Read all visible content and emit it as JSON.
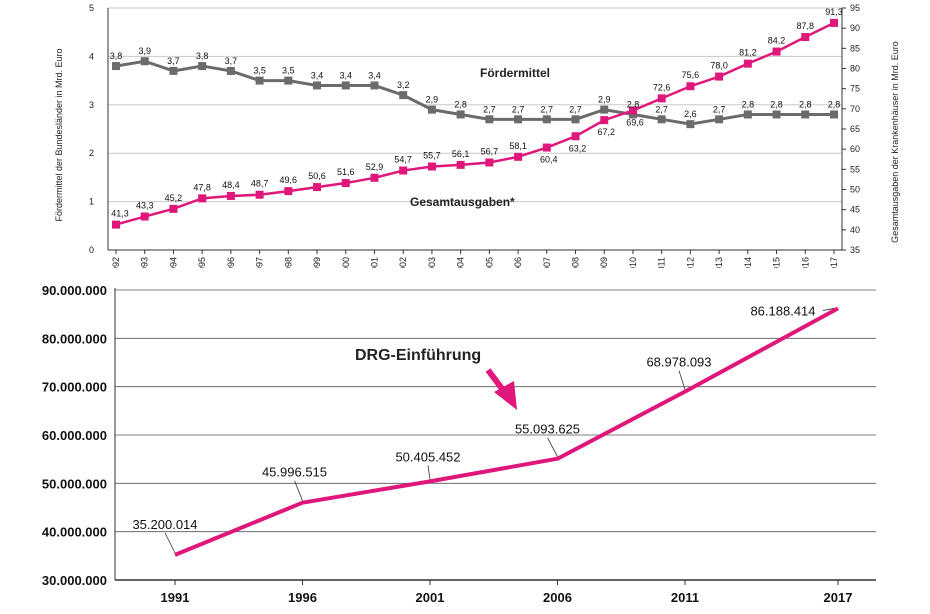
{
  "colors": {
    "magenta": "#e0177a",
    "gray": "#6b6b6b",
    "grid": "#c8c8c8",
    "axis": "#333333"
  },
  "chart_data": [
    {
      "type": "line",
      "x": [
        "1992",
        "1993",
        "1994",
        "1995",
        "1996",
        "1997",
        "1998",
        "1999",
        "2000",
        "2001",
        "2002",
        "2003",
        "2004",
        "2005",
        "2006",
        "2007",
        "2008",
        "2009",
        "2010",
        "2011",
        "2012",
        "2013",
        "2014",
        "2015",
        "2016",
        "2017"
      ],
      "series": [
        {
          "name": "Fördermittel",
          "axis": "left",
          "values": [
            3.8,
            3.9,
            3.7,
            3.8,
            3.7,
            3.5,
            3.5,
            3.4,
            3.4,
            3.4,
            3.2,
            2.9,
            2.8,
            2.7,
            2.7,
            2.7,
            2.7,
            2.9,
            2.8,
            2.7,
            2.6,
            2.7,
            2.8,
            2.8,
            2.8,
            2.8
          ],
          "labels": [
            "3,8",
            "3,9",
            "3,7",
            "3,8",
            "3,7",
            "3,5",
            "3,5",
            "3,4",
            "3,4",
            "3,4",
            "3,2",
            "2,9",
            "2,8",
            "2,7",
            "2,7",
            "2,7",
            "2,7",
            "2,9",
            "2,8",
            "2,7",
            "2,6",
            "2,7",
            "2,8",
            "2,8",
            "2,8",
            "2,8"
          ]
        },
        {
          "name": "Gesamtausgaben*",
          "axis": "right",
          "values": [
            41.3,
            43.3,
            45.2,
            47.8,
            48.4,
            48.7,
            49.6,
            50.6,
            51.6,
            52.9,
            54.7,
            55.7,
            56.1,
            56.7,
            58.1,
            60.4,
            63.2,
            67.2,
            69.6,
            72.6,
            75.6,
            78.0,
            81.2,
            84.2,
            87.8,
            91.3
          ],
          "labels": [
            "41,3",
            "43,3",
            "45,2",
            "47,8",
            "48,4",
            "48,7",
            "49,6",
            "50,6",
            "51,6",
            "52,9",
            "54,7",
            "55,7",
            "56,1",
            "56,7",
            "58,1",
            "60,4",
            "63,2",
            "67,2",
            "69,6",
            "72,6",
            "75,6",
            "78,0",
            "81,2",
            "84,2",
            "87,8",
            "91,3"
          ]
        }
      ],
      "ylabel": "Fördermittel der Bundesländer in Mrd. Euro",
      "ylabel_right": "Gesamtausgaben der Krankenhäuser in Mrd. Euro",
      "ylim": [
        0,
        5
      ],
      "ylim_right": [
        35,
        95
      ],
      "yticks": [
        "0",
        "1",
        "2",
        "3",
        "4",
        "5"
      ],
      "yticks_right": [
        "35",
        "40",
        "45",
        "50",
        "55",
        "60",
        "65",
        "70",
        "75",
        "80",
        "85",
        "90",
        "95"
      ],
      "grid": true
    },
    {
      "type": "line",
      "x": [
        "1991",
        "1996",
        "2001",
        "2006",
        "2011",
        "2017"
      ],
      "series": [
        {
          "values": [
            35200014,
            45996515,
            50405452,
            55093625,
            68978093,
            86188414
          ],
          "labels": [
            "35.200.014",
            "45.996.515",
            "50.405.452",
            "55.093.625",
            "68.978.093",
            "86.188.414"
          ]
        }
      ],
      "ylim": [
        30000000,
        90000000
      ],
      "yticks": [
        "30.000.000",
        "40.000.000",
        "50.000.000",
        "60.000.000",
        "70.000.000",
        "80.000.000",
        "90.000.000"
      ],
      "annotation": "DRG-Einführung",
      "grid": true
    }
  ]
}
